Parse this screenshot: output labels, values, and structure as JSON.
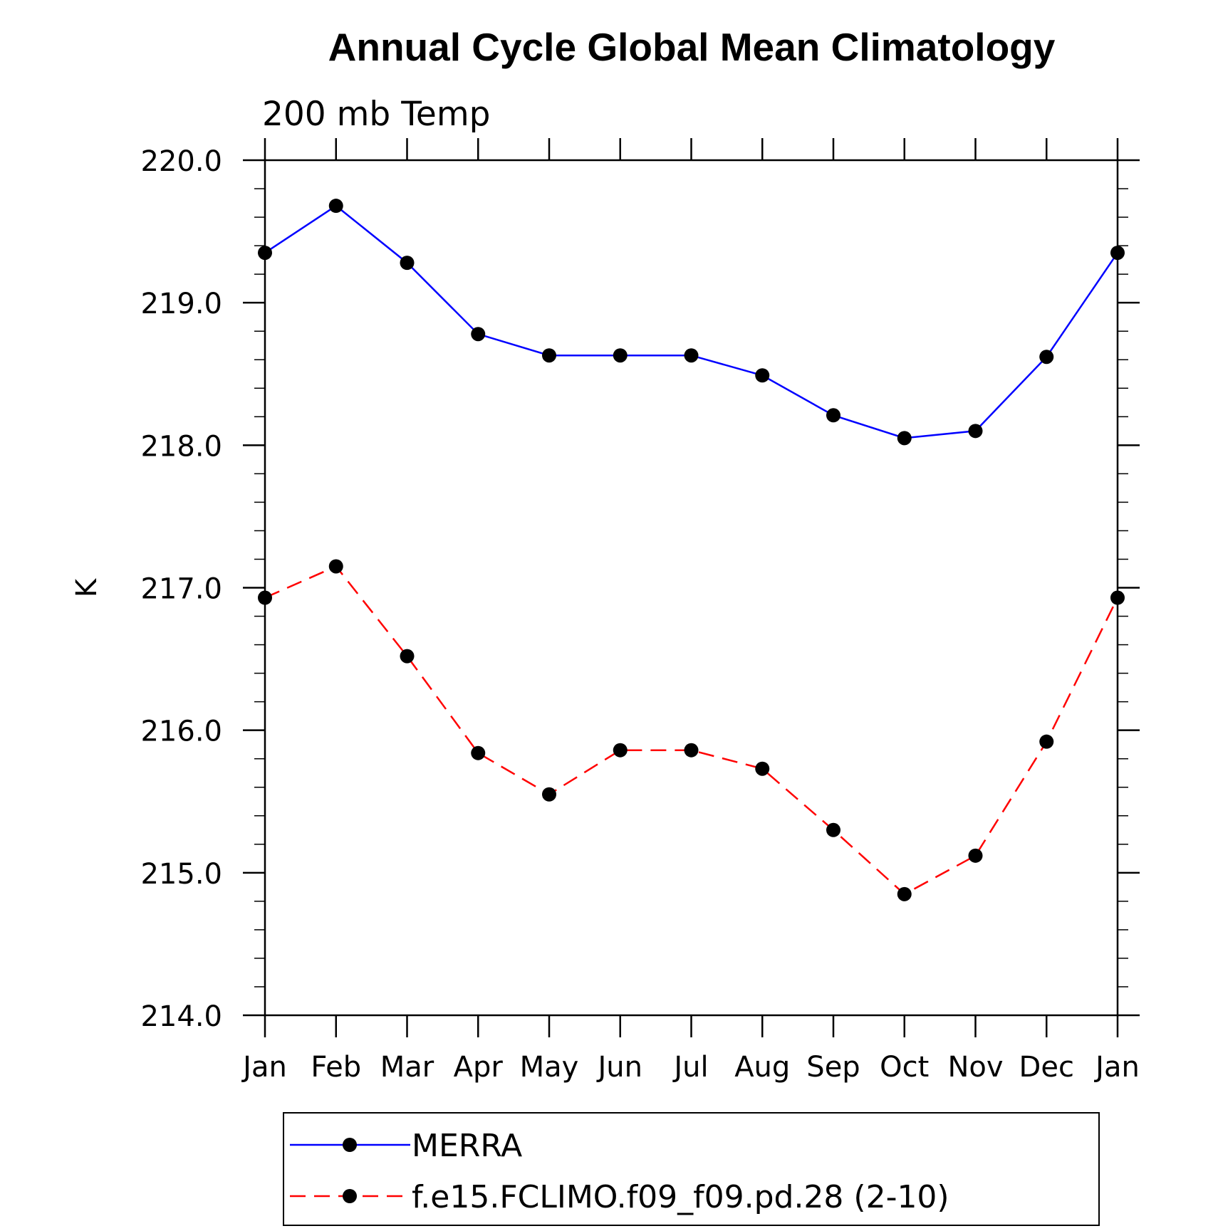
{
  "chart_data": {
    "type": "line",
    "title": "Annual Cycle Global Mean Climatology",
    "subtitle": "200 mb Temp",
    "ylabel": "K",
    "xlabel": "",
    "categories": [
      "Jan",
      "Feb",
      "Mar",
      "Apr",
      "May",
      "Jun",
      "Jul",
      "Aug",
      "Sep",
      "Oct",
      "Nov",
      "Dec",
      "Jan"
    ],
    "ylim": [
      214.0,
      220.0
    ],
    "yticks": [
      "214.0",
      "215.0",
      "216.0",
      "217.0",
      "218.0",
      "219.0",
      "220.0"
    ],
    "y_minor_step": 0.2,
    "grid": false,
    "legend_position": "bottom",
    "series": [
      {
        "name": "MERRA",
        "color": "#0000ff",
        "dash": "solid",
        "marker": "filled-circle",
        "values": [
          219.35,
          219.68,
          219.28,
          218.78,
          218.63,
          218.63,
          218.63,
          218.49,
          218.21,
          218.05,
          218.1,
          218.62,
          219.35
        ]
      },
      {
        "name": "f.e15.FCLIMO.f09_f09.pd.28 (2-10)",
        "color": "#ff0000",
        "dash": "dashed",
        "marker": "filled-circle",
        "values": [
          216.93,
          217.15,
          216.52,
          215.84,
          215.55,
          215.86,
          215.86,
          215.73,
          215.3,
          214.85,
          215.12,
          215.92,
          216.93
        ]
      }
    ]
  }
}
